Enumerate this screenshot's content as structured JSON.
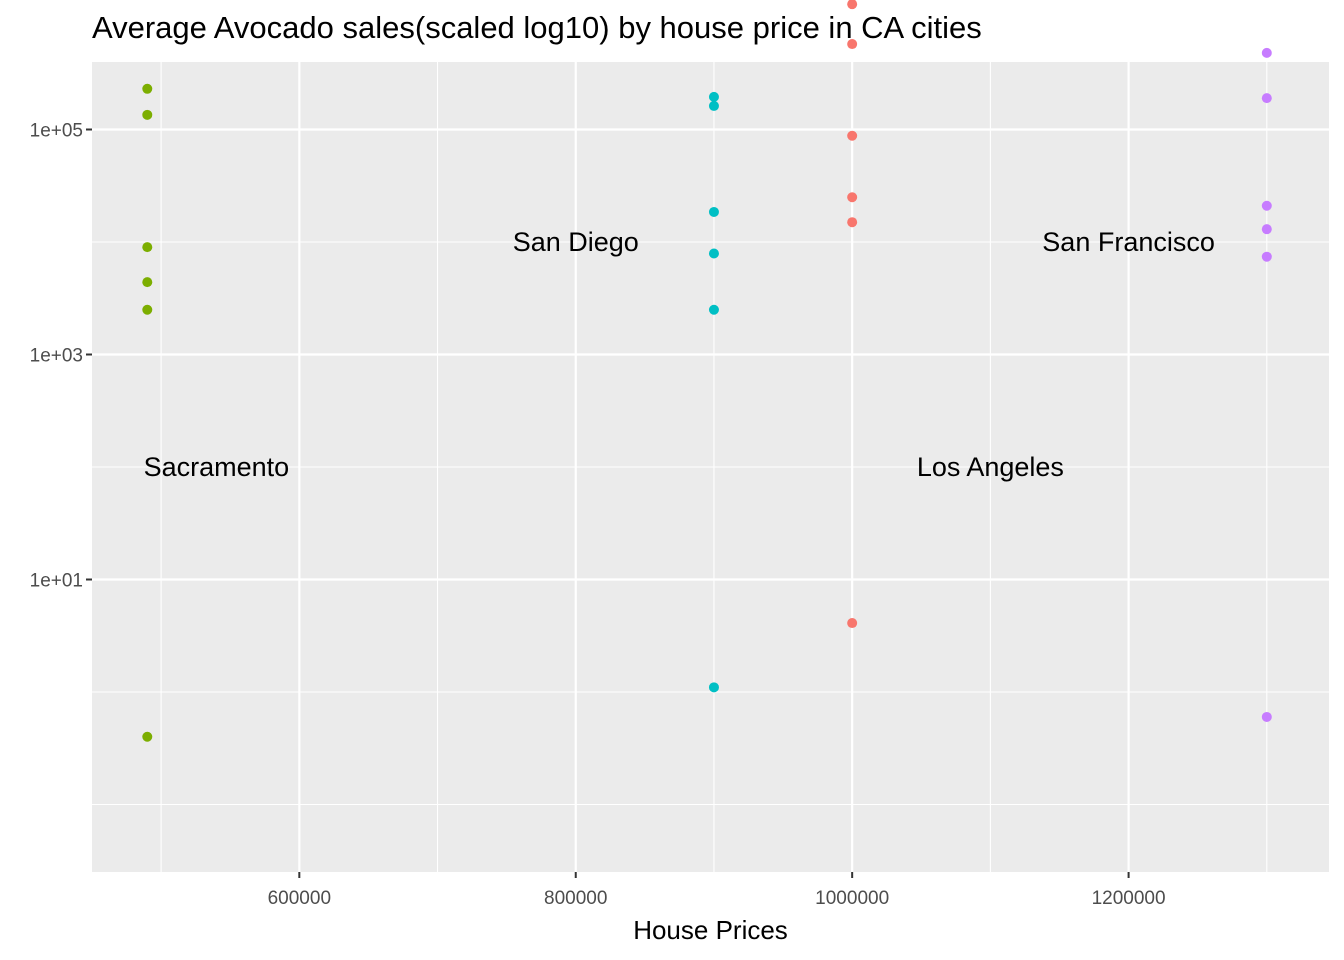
{
  "chart_data": {
    "type": "scatter",
    "title": "Average Avocado sales(scaled log10) by house price in CA cities",
    "xlabel": "House Prices",
    "ylabel": "",
    "y_scale": "log10",
    "xlim": [
      450000,
      1345000
    ],
    "ylim_log10": [
      -1.6,
      5.6
    ],
    "x_ticks": [
      {
        "value": 600000,
        "label": "600000"
      },
      {
        "value": 800000,
        "label": "800000"
      },
      {
        "value": 1000000,
        "label": "1000000"
      },
      {
        "value": 1200000,
        "label": "1200000"
      }
    ],
    "y_ticks": [
      {
        "value": 10,
        "label": "1e+01"
      },
      {
        "value": 1000,
        "label": "1e+03"
      },
      {
        "value": 100000,
        "label": "1e+05"
      }
    ],
    "grid": true,
    "background": "#ebebeb",
    "series": [
      {
        "city": "Sacramento",
        "color": "#7cae00",
        "x": 490000,
        "values": [
          230000,
          135000,
          9000,
          4400,
          2500,
          0.4
        ]
      },
      {
        "city": "San Diego",
        "color": "#00bfc4",
        "x": 900000,
        "values": [
          195000,
          162000,
          18500,
          7900,
          2500,
          1.1
        ]
      },
      {
        "city": "Los Angeles",
        "color": "#f8766d",
        "x": 1000000,
        "values": [
          1300000,
          575000,
          88000,
          25000,
          15000,
          4.1
        ]
      },
      {
        "city": "San Francisco",
        "color": "#c77cff",
        "x": 1300000,
        "values": [
          480000,
          190000,
          21000,
          13000,
          7400,
          0.6
        ]
      }
    ],
    "annotations": [
      {
        "text": "Sacramento",
        "x": 540000,
        "y": 100
      },
      {
        "text": "San Diego",
        "x": 800000,
        "y": 10000
      },
      {
        "text": "Los Angeles",
        "x": 1100000,
        "y": 100
      },
      {
        "text": "San Francisco",
        "x": 1200000,
        "y": 10000
      }
    ]
  }
}
